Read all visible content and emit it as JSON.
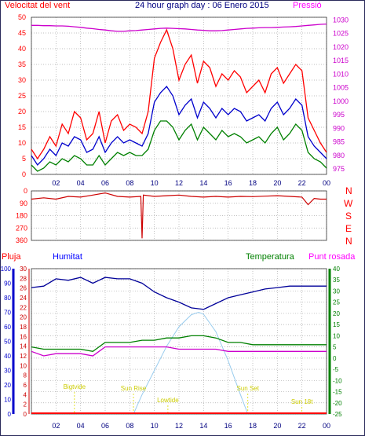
{
  "header": {
    "left": "Velocitat del vent",
    "title": "24 hour graph day : 06 Enero 2015",
    "right": "Pressió"
  },
  "direction_letters": [
    "N",
    "W",
    "S",
    "E",
    "N"
  ],
  "lower_labels": {
    "pluja": "Pluja",
    "humitat": "Humitat",
    "temperatura": "Temperatura",
    "punt_rosada": "Punt rosada"
  },
  "colors": {
    "wind_gust": "#ff0000",
    "wind_avg": "#0000cc",
    "wind_min": "#008000",
    "pressure": "#cc00cc",
    "direction": "#cc0000",
    "humidity": "#000099",
    "temperature": "#008000",
    "dewpoint": "#cc00cc",
    "solar": "#99ccee",
    "twilight": "#dddd00",
    "grid": "#aaaaaa"
  },
  "chart_data": [
    {
      "type": "line",
      "title": "24 hour graph day : 06 Enero 2015",
      "ylabel": "Velocitat del vent",
      "y2label": "Pressió",
      "x_ticks": [
        "02",
        "04",
        "06",
        "08",
        "10",
        "12",
        "14",
        "16",
        "18",
        "20",
        "22",
        "00"
      ],
      "ylim": [
        0,
        50
      ],
      "y_ticks": [
        0,
        5,
        10,
        15,
        20,
        25,
        30,
        35,
        40,
        45,
        50
      ],
      "y2lim": [
        973,
        1031
      ],
      "y2_ticks": [
        975,
        980,
        985,
        990,
        995,
        1000,
        1005,
        1010,
        1015,
        1020,
        1025,
        1030
      ],
      "x_hours": [
        0,
        0.5,
        1,
        1.5,
        2,
        2.5,
        3,
        3.5,
        4,
        4.5,
        5,
        5.5,
        6,
        6.5,
        7,
        7.5,
        8,
        8.5,
        9,
        9.5,
        10,
        10.5,
        11,
        11.5,
        12,
        12.5,
        13,
        13.5,
        14,
        14.5,
        15,
        15.5,
        16,
        16.5,
        17,
        17.5,
        18,
        18.5,
        19,
        19.5,
        20,
        20.5,
        21,
        21.5,
        22,
        22.5,
        23,
        23.5,
        24
      ],
      "series": [
        {
          "key": "gust",
          "values": [
            8,
            5,
            8,
            12,
            9,
            16,
            13,
            20,
            18,
            11,
            13,
            20,
            10,
            17,
            19,
            14,
            16,
            15,
            13,
            20,
            37,
            42,
            46,
            40,
            30,
            35,
            38,
            29,
            36,
            34,
            28,
            32,
            30,
            33,
            31,
            26,
            28,
            30,
            26,
            32,
            34,
            29,
            32,
            35,
            33,
            18,
            14,
            10,
            7
          ]
        },
        {
          "key": "avg",
          "values": [
            6,
            3,
            5,
            8,
            6,
            10,
            9,
            12,
            11,
            7,
            8,
            12,
            7,
            10,
            12,
            10,
            11,
            10,
            9,
            13,
            23,
            26,
            28,
            25,
            19,
            22,
            24,
            18,
            23,
            21,
            18,
            21,
            19,
            21,
            20,
            17,
            18,
            19,
            17,
            21,
            23,
            19,
            21,
            24,
            22,
            12,
            9,
            7,
            5
          ]
        },
        {
          "key": "min",
          "values": [
            3,
            1,
            2,
            4,
            3,
            5,
            4,
            6,
            5,
            3,
            3,
            6,
            3,
            5,
            7,
            6,
            7,
            6,
            6,
            8,
            14,
            17,
            17,
            15,
            11,
            14,
            16,
            11,
            15,
            13,
            11,
            14,
            12,
            13,
            12,
            10,
            11,
            12,
            10,
            13,
            15,
            11,
            13,
            16,
            14,
            7,
            5,
            4,
            2
          ]
        },
        {
          "key": "pressure",
          "values": [
            1028.0,
            1028.0,
            1027.9,
            1027.9,
            1027.8,
            1027.8,
            1027.7,
            1027.5,
            1027.3,
            1027.0,
            1026.8,
            1026.5,
            1026.3,
            1026.0,
            1025.8,
            1025.8,
            1026.0,
            1026.1,
            1026.3,
            1026.5,
            1026.7,
            1026.9,
            1027.0,
            1026.9,
            1026.8,
            1026.7,
            1026.5,
            1026.3,
            1026.2,
            1026.0,
            1026.0,
            1026.1,
            1026.3,
            1026.5,
            1026.7,
            1026.9,
            1027.0,
            1027.1,
            1027.2,
            1027.2,
            1027.3,
            1027.4,
            1027.5,
            1027.6,
            1027.8,
            1028.0,
            1028.2,
            1028.4,
            1028.5
          ]
        }
      ]
    },
    {
      "type": "line",
      "x_ticks": [
        "02",
        "04",
        "06",
        "08",
        "10",
        "12",
        "14",
        "16",
        "18",
        "20",
        "22",
        "00"
      ],
      "ylim": [
        0,
        360
      ],
      "y_ticks": [
        0,
        90,
        180,
        270,
        360
      ],
      "y_ticklabels": [
        "360",
        "270",
        "180",
        "90",
        "0"
      ],
      "x_hours": [
        0,
        1,
        2,
        3,
        4,
        5,
        6,
        7,
        8,
        8.9,
        9.0,
        9.1,
        10,
        11,
        12,
        13,
        14,
        15,
        16,
        17,
        18,
        19,
        20,
        21,
        22,
        22.5,
        23,
        23.5,
        24
      ],
      "series": [
        {
          "key": "direction",
          "values": [
            300,
            310,
            300,
            320,
            315,
            330,
            345,
            320,
            315,
            320,
            15,
            330,
            320,
            325,
            330,
            320,
            315,
            320,
            315,
            320,
            318,
            322,
            325,
            320,
            315,
            260,
            305,
            300,
            300
          ]
        }
      ]
    },
    {
      "type": "line",
      "ylabel": "Pluja",
      "x_ticks": [
        "02",
        "04",
        "06",
        "08",
        "10",
        "12",
        "14",
        "16",
        "18",
        "20",
        "22",
        "00"
      ],
      "humidity_ticks": [
        0,
        10,
        20,
        30,
        40,
        50,
        60,
        70,
        80,
        90,
        100
      ],
      "rain_ticks": [
        0,
        2,
        4,
        6,
        8,
        10,
        12,
        14,
        16,
        18,
        20,
        22,
        24,
        26,
        28,
        30
      ],
      "temperature_ticks": [
        -25,
        -20,
        -15,
        -10,
        -5,
        0,
        5,
        10,
        15,
        20,
        25,
        30,
        35,
        40
      ],
      "humidity_range": [
        0,
        100
      ],
      "temperature_range": [
        -25,
        40
      ],
      "x_hours": [
        0,
        1,
        2,
        3,
        4,
        5,
        6,
        7,
        8,
        9,
        10,
        11,
        12,
        13,
        14,
        15,
        16,
        17,
        18,
        19,
        20,
        21,
        22,
        23,
        24
      ],
      "series": [
        {
          "key": "humidity",
          "values": [
            87,
            88,
            93,
            92,
            94,
            90,
            94,
            93,
            93,
            90,
            84,
            80,
            77,
            73,
            72,
            76,
            80,
            82,
            84,
            86,
            87,
            88,
            88,
            88,
            88
          ]
        },
        {
          "key": "temperature",
          "values": [
            5,
            4,
            4,
            4,
            4,
            3,
            7,
            7,
            7,
            8,
            8,
            9,
            9,
            10,
            10,
            9,
            7,
            7,
            6,
            6,
            6,
            6,
            6,
            6,
            6
          ]
        },
        {
          "key": "dewpoint",
          "values": [
            3,
            1,
            2,
            2,
            2,
            1,
            5,
            5,
            5,
            5,
            5,
            5,
            4,
            4,
            4,
            4,
            3,
            3,
            3,
            3,
            3,
            3,
            3,
            3,
            3
          ]
        }
      ],
      "rain": {
        "total_mm": 0
      },
      "solar": {
        "x_hours": [
          8.3,
          9,
          10,
          11,
          12,
          13,
          13.6,
          14,
          15,
          16,
          17,
          17.6
        ],
        "values": [
          0,
          4,
          9,
          14,
          18,
          20.5,
          21,
          20.6,
          17,
          11,
          4,
          0
        ]
      },
      "annotations": [
        {
          "text": "Bigtvide",
          "hour": 3.5
        },
        {
          "text": "Sun Rise",
          "hour": 8.3
        },
        {
          "text": "Lowtide",
          "hour": 11.1
        },
        {
          "text": "Sun Set",
          "hour": 17.6
        },
        {
          "text": "Sun 18t",
          "hour": 22
        }
      ]
    }
  ]
}
